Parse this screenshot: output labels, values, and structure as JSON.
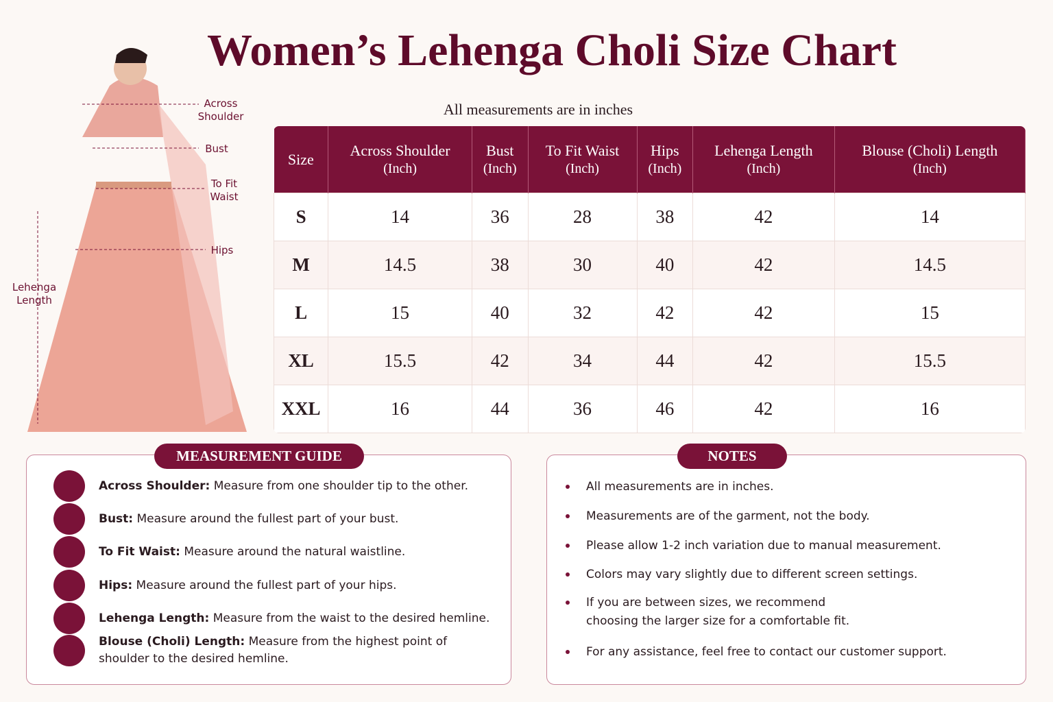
{
  "header": {
    "title": "Women’s Lehenga Choli Size Chart",
    "subtitle": "All measurements are in inches"
  },
  "figure": {
    "labels": [
      "Across Shoulder",
      "Bust",
      "To Fit Waist",
      "Hips",
      "Lehenga Length"
    ]
  },
  "table": {
    "columns": [
      {
        "name": "Size"
      },
      {
        "name": "Across Shoulder",
        "unit": "(Inch)"
      },
      {
        "name": "Bust",
        "unit": "(Inch)"
      },
      {
        "name": "To Fit Waist",
        "unit": "(Inch)"
      },
      {
        "name": "Hips",
        "unit": "(Inch)"
      },
      {
        "name": "Lehenga Length",
        "unit": "(Inch)"
      },
      {
        "name": "Blouse (Choli) Length",
        "unit": "(Inch)"
      }
    ],
    "rows": [
      [
        "S",
        14,
        36,
        28,
        38,
        42,
        14
      ],
      [
        "M",
        14.5,
        38,
        30,
        40,
        42,
        14.5
      ],
      [
        "L",
        15,
        40,
        32,
        42,
        42,
        15
      ],
      [
        "XL",
        15.5,
        42,
        34,
        44,
        42,
        15.5
      ],
      [
        "XXL",
        16,
        44,
        36,
        46,
        42,
        16
      ]
    ]
  },
  "guide": {
    "title": "MEASUREMENT GUIDE",
    "items": [
      {
        "term": "Across Shoulder:",
        "text": "Measure from one shoulder tip to the other."
      },
      {
        "term": "Bust:",
        "text": "Measure around the fullest part of your bust."
      },
      {
        "term": "To Fit Waist:",
        "text": "Measure around the natural waistline."
      },
      {
        "term": "Hips:",
        "text": "Measure around the fullest part of your hips."
      },
      {
        "term": "Lehenga Length:",
        "text": "Measure from the waist to the desired hemline."
      },
      {
        "term": "Blouse (Choli) Length:",
        "text": "Measure from the highest point of shoulder to the desired hemline."
      }
    ]
  },
  "notes": {
    "title": "NOTES",
    "items": [
      "All measurements are in inches.",
      "Measurements are of the garment, not the body.",
      "Please allow 1-2 inch variation due to manual measurement.",
      "Colors may vary slightly due to different screen settings.",
      "If you are between sizes, we recommend choosing the larger size for a comfortable fit.",
      "For any assistance, feel free to contact our customer support."
    ]
  }
}
